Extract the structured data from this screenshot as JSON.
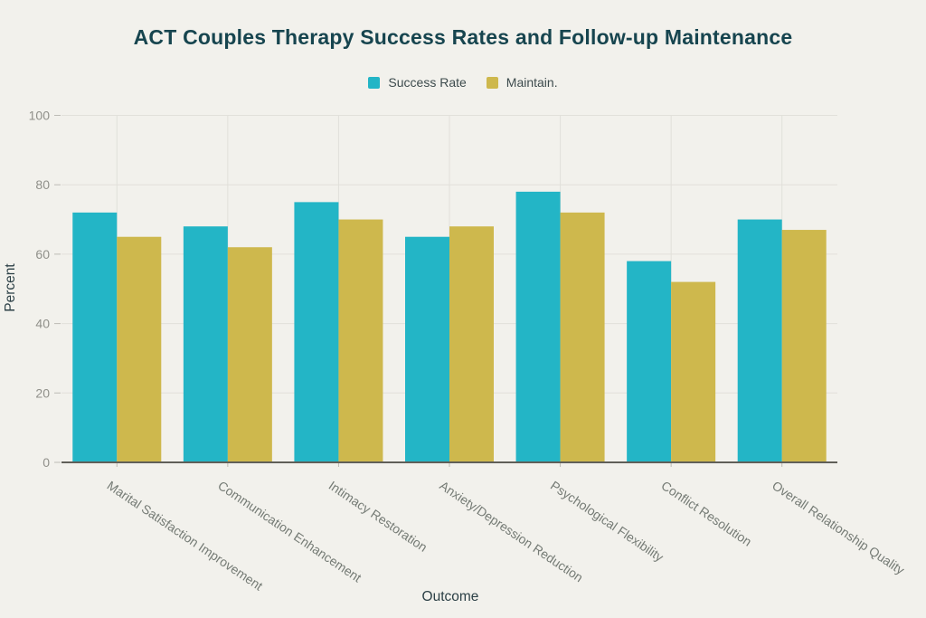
{
  "chart_data": {
    "type": "bar",
    "title": "ACT Couples Therapy Success Rates and Follow-up Maintenance",
    "xlabel": "Outcome",
    "ylabel": "Percent",
    "ylim": [
      0,
      100
    ],
    "yticks": [
      0,
      20,
      40,
      60,
      80,
      100
    ],
    "grid": true,
    "legend_position": "top-center",
    "categories": [
      "Marital Satisfaction Improvement",
      "Communication Enhancement",
      "Intimacy Restoration",
      "Anxiety/Depression Reduction",
      "Psychological Flexibility",
      "Conflict Resolution",
      "Overall Relationship Quality"
    ],
    "series": [
      {
        "name": "Success Rate",
        "color": "#23b5c6",
        "values": [
          72,
          68,
          75,
          65,
          78,
          58,
          70
        ]
      },
      {
        "name": "Maintain.",
        "color": "#ceb84d",
        "values": [
          65,
          62,
          70,
          68,
          72,
          52,
          67
        ]
      }
    ]
  },
  "colors": {
    "background": "#f2f1ec",
    "title_text": "#17454f",
    "legend_text": "#3d4b4d",
    "axis_title_text": "#2c4046",
    "tick_text": "#90908a",
    "category_text": "#757b75",
    "gridline": "#e1e0da",
    "tick_mark": "#bcbbb5",
    "axis_line": "#605f58"
  }
}
